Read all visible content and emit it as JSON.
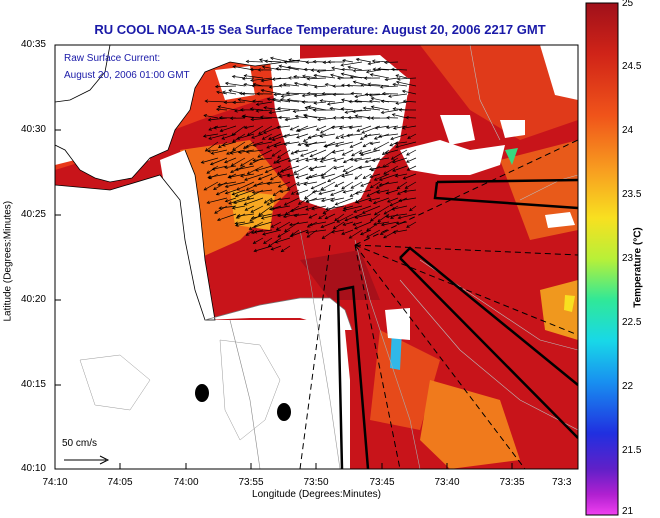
{
  "title": "RU COOL  NOAA-15  Sea Surface Temperature:  August 20, 2006 2217 GMT",
  "axes": {
    "xlabel": "Longitude (Degrees:Minutes)",
    "ylabel": "Latitude (Degrees:Minutes)",
    "xticks": [
      "74:10",
      "74:05",
      "74:00",
      "73:55",
      "73:50",
      "73:45",
      "73:40",
      "73:35",
      "73:3"
    ],
    "yticks": [
      "40:35",
      "40:30",
      "40:25",
      "40:20",
      "40:15",
      "40:10"
    ]
  },
  "current_label": {
    "line1": "Raw Surface Current:",
    "line2": "August 20, 2006 01:00 GMT"
  },
  "scale": {
    "label": "50 cm/s"
  },
  "colorbar": {
    "title": "Temperature (°C)",
    "ticks": [
      "25",
      "24.5",
      "24",
      "23.5",
      "23",
      "22.5",
      "22",
      "21.5",
      "21"
    ],
    "colors": [
      "#a0101a",
      "#d02418",
      "#f0541a",
      "#f8a020",
      "#f8e020",
      "#b8f038",
      "#30e898",
      "#18d8e8",
      "#1890f0",
      "#2030e0",
      "#6020c8",
      "#b020d0",
      "#f040f0"
    ]
  },
  "colors": {
    "land": "#ffffff",
    "cloud": "#ffffff",
    "sst_warm": "#b8121a",
    "sst_mid": "#e02a1a",
    "sst_cool": "#f06a18",
    "title": "#1a1aa8"
  }
}
